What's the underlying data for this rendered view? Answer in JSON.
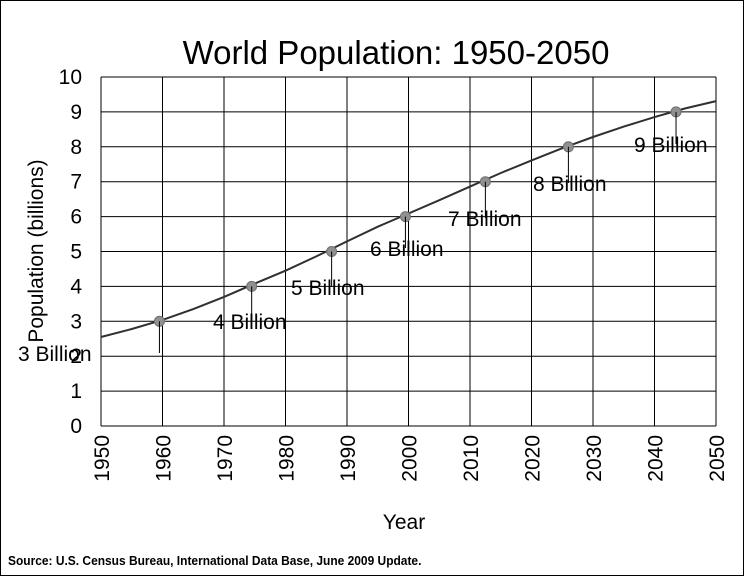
{
  "chart_data": {
    "type": "line",
    "title": "World Population: 1950-2050",
    "xlabel": "Year",
    "ylabel": "Population (billions)",
    "xlim": [
      1950,
      2050
    ],
    "ylim": [
      0,
      10
    ],
    "x_ticks": [
      "1950",
      "1960",
      "1970",
      "1980",
      "1990",
      "2000",
      "2010",
      "2020",
      "2030",
      "2040",
      "2050"
    ],
    "y_ticks": [
      "0",
      "1",
      "2",
      "3",
      "4",
      "5",
      "6",
      "7",
      "8",
      "9",
      "10"
    ],
    "grid": true,
    "series": [
      {
        "x": [
          1950,
          1955,
          1960,
          1965,
          1970,
          1975,
          1980,
          1985,
          1990,
          1995,
          2000,
          2005,
          2010,
          2015,
          2020,
          2025,
          2030,
          2035,
          2040,
          2045,
          2050
        ],
        "y": [
          2.55,
          2.78,
          3.04,
          3.35,
          3.7,
          4.08,
          4.45,
          4.86,
          5.29,
          5.71,
          6.09,
          6.47,
          6.86,
          7.25,
          7.61,
          7.96,
          8.28,
          8.58,
          8.85,
          9.1,
          9.31
        ],
        "color": "#303030"
      }
    ],
    "markers": [
      {
        "x": 1959.5,
        "y": 3,
        "label": "3 Billion"
      },
      {
        "x": 1974.5,
        "y": 4,
        "label": "4 Billion"
      },
      {
        "x": 1987.5,
        "y": 5,
        "label": "5 Billion"
      },
      {
        "x": 1999.5,
        "y": 6,
        "label": "6 Billion"
      },
      {
        "x": 2012.5,
        "y": 7,
        "label": "7 Billion"
      },
      {
        "x": 2026,
        "y": 8,
        "label": "8 Billion"
      },
      {
        "x": 2043.5,
        "y": 9,
        "label": "9 Billion"
      }
    ],
    "marker_color": "#909090"
  },
  "source": "Source: U.S. Census Bureau, International Data Base, June 2009 Update."
}
